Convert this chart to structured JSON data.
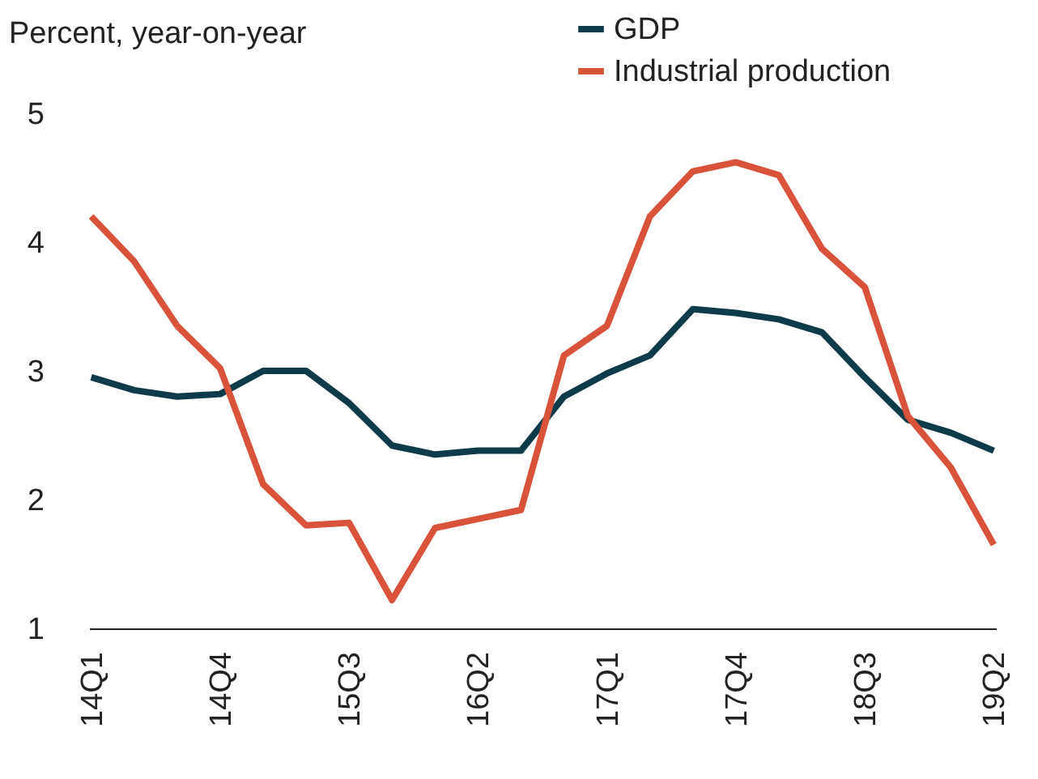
{
  "chart_data": {
    "type": "line",
    "ylabel": "Percent, year-on-year",
    "categories": [
      "14Q1",
      null,
      null,
      "14Q4",
      null,
      null,
      "15Q3",
      null,
      null,
      "16Q2",
      null,
      null,
      "17Q1",
      null,
      null,
      "17Q4",
      null,
      null,
      "18Q3",
      null,
      null,
      "19Q2"
    ],
    "series": [
      {
        "name": "GDP",
        "color": "#0e3b4a",
        "values": [
          2.95,
          2.85,
          2.8,
          2.82,
          3.0,
          3.0,
          2.75,
          2.42,
          2.35,
          2.38,
          2.38,
          2.8,
          2.98,
          3.12,
          3.48,
          3.45,
          3.4,
          3.3,
          2.95,
          2.62,
          2.52,
          2.38
        ]
      },
      {
        "name": "Industrial production",
        "color": "#d9533b",
        "values": [
          4.2,
          3.85,
          3.35,
          3.02,
          2.12,
          1.8,
          1.82,
          1.22,
          1.78,
          1.85,
          1.92,
          3.12,
          3.35,
          4.2,
          4.55,
          4.62,
          4.52,
          3.95,
          3.65,
          2.65,
          2.25,
          1.65
        ]
      }
    ],
    "ylim": [
      1,
      5
    ],
    "yticks": [
      1,
      2,
      3,
      4,
      5
    ],
    "grid": false,
    "legend": "top right",
    "line_style": "solid",
    "marker": "none"
  }
}
